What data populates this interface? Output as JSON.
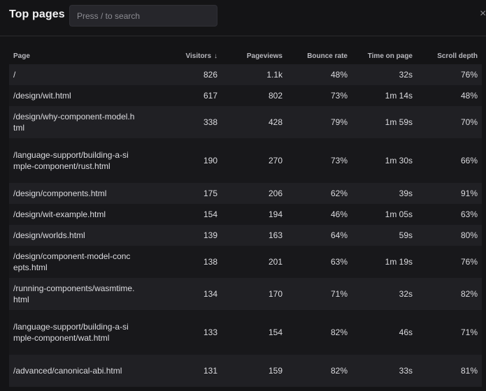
{
  "header": {
    "title": "Top pages",
    "search_placeholder": "Press / to search",
    "close_glyph": "×"
  },
  "table": {
    "columns": {
      "page": "Page",
      "visitors": "Visitors",
      "sort_indicator": "↓",
      "pageviews": "Pageviews",
      "bounce_rate": "Bounce rate",
      "time_on_page": "Time on page",
      "scroll_depth": "Scroll depth"
    },
    "rows": [
      {
        "page": "/",
        "visitors": "826",
        "pageviews": "1.1k",
        "bounce_rate": "48%",
        "time_on_page": "32s",
        "scroll_depth": "76%"
      },
      {
        "page": "/design/wit.html",
        "visitors": "617",
        "pageviews": "802",
        "bounce_rate": "73%",
        "time_on_page": "1m 14s",
        "scroll_depth": "48%"
      },
      {
        "page": "/design/why-component-model.html",
        "visitors": "338",
        "pageviews": "428",
        "bounce_rate": "79%",
        "time_on_page": "1m 59s",
        "scroll_depth": "70%"
      },
      {
        "page": "/language-support/building-a-simple-component/rust.html",
        "visitors": "190",
        "pageviews": "270",
        "bounce_rate": "73%",
        "time_on_page": "1m 30s",
        "scroll_depth": "66%"
      },
      {
        "page": "/design/components.html",
        "visitors": "175",
        "pageviews": "206",
        "bounce_rate": "62%",
        "time_on_page": "39s",
        "scroll_depth": "91%"
      },
      {
        "page": "/design/wit-example.html",
        "visitors": "154",
        "pageviews": "194",
        "bounce_rate": "46%",
        "time_on_page": "1m 05s",
        "scroll_depth": "63%"
      },
      {
        "page": "/design/worlds.html",
        "visitors": "139",
        "pageviews": "163",
        "bounce_rate": "64%",
        "time_on_page": "59s",
        "scroll_depth": "80%"
      },
      {
        "page": "/design/component-model-concepts.html",
        "visitors": "138",
        "pageviews": "201",
        "bounce_rate": "63%",
        "time_on_page": "1m 19s",
        "scroll_depth": "76%"
      },
      {
        "page": "/running-components/wasmtime.html",
        "visitors": "134",
        "pageviews": "170",
        "bounce_rate": "71%",
        "time_on_page": "32s",
        "scroll_depth": "82%"
      },
      {
        "page": "/language-support/building-a-simple-component/wat.html",
        "visitors": "133",
        "pageviews": "154",
        "bounce_rate": "82%",
        "time_on_page": "46s",
        "scroll_depth": "71%"
      },
      {
        "page": "/advanced/canonical-abi.html",
        "visitors": "131",
        "pageviews": "159",
        "bounce_rate": "82%",
        "time_on_page": "33s",
        "scroll_depth": "81%"
      }
    ]
  }
}
